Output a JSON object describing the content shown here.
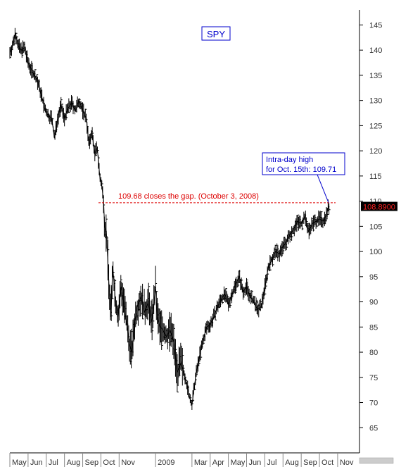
{
  "chart_data": {
    "type": "line",
    "title": "SPY",
    "xlabel": "",
    "ylabel": "",
    "ylim": [
      60,
      148
    ],
    "y_ticks": [
      145,
      140,
      135,
      130,
      125,
      120,
      115,
      110,
      105,
      100,
      95,
      90,
      85,
      80,
      75,
      70,
      65
    ],
    "x_tick_labels": [
      "May",
      "Jun",
      "Jul",
      "Aug",
      "Sep",
      "Oct",
      "Nov",
      "2009",
      "Mar",
      "Apr",
      "May",
      "Jun",
      "Jul",
      "Aug",
      "Sep",
      "Oct",
      "Nov"
    ],
    "x_tick_months": [
      0,
      1,
      2,
      3,
      4,
      5,
      6,
      8,
      10,
      11,
      12,
      13,
      14,
      15,
      16,
      17,
      18
    ],
    "x_range_months": [
      0,
      19.2
    ],
    "last_price": "108.8900",
    "gap_level": 109.68,
    "gap_label": "109.68 closes the gap. (October 3, 2008)",
    "high_label_lines": [
      "Intra-day high",
      "for Oct. 15th: 109.71"
    ],
    "high_point": [
      17.5,
      109.71
    ],
    "colors": {
      "price": "#000000",
      "gap_line": "#dd0000",
      "annotation_border": "#0000cc",
      "annotation_text": "#0000cc",
      "last_price_bg": "#000000",
      "last_price_text": "#ff2222"
    },
    "series": [
      {
        "values": [
          [
            0.0,
            139.5
          ],
          [
            0.2,
            141.5
          ],
          [
            0.3,
            143.5
          ],
          [
            0.45,
            141.0
          ],
          [
            0.6,
            140.0
          ],
          [
            0.8,
            140.5
          ],
          [
            1.0,
            137.5
          ],
          [
            1.2,
            136.0
          ],
          [
            1.5,
            134.0
          ],
          [
            1.7,
            131.5
          ],
          [
            1.9,
            128.5
          ],
          [
            2.1,
            127.0
          ],
          [
            2.3,
            126.5
          ],
          [
            2.45,
            122.5
          ],
          [
            2.6,
            126.0
          ],
          [
            2.8,
            129.0
          ],
          [
            3.0,
            126.5
          ],
          [
            3.2,
            128.5
          ],
          [
            3.4,
            129.5
          ],
          [
            3.6,
            128.0
          ],
          [
            3.8,
            130.0
          ],
          [
            4.0,
            128.0
          ],
          [
            4.2,
            126.5
          ],
          [
            4.35,
            121.0
          ],
          [
            4.5,
            124.0
          ],
          [
            4.65,
            119.5
          ],
          [
            4.8,
            120.5
          ],
          [
            4.95,
            114.5
          ],
          [
            5.05,
            113.0
          ],
          [
            5.15,
            110.0
          ],
          [
            5.2,
            105.0
          ],
          [
            5.3,
            104.0
          ],
          [
            5.45,
            93.0
          ],
          [
            5.55,
            87.0
          ],
          [
            5.65,
            97.0
          ],
          [
            5.8,
            90.0
          ],
          [
            5.95,
            87.0
          ],
          [
            6.1,
            93.0
          ],
          [
            6.25,
            90.0
          ],
          [
            6.4,
            86.0
          ],
          [
            6.55,
            82.0
          ],
          [
            6.7,
            80.0
          ],
          [
            6.85,
            86.0
          ],
          [
            7.0,
            89.0
          ],
          [
            7.2,
            91.0
          ],
          [
            7.4,
            88.0
          ],
          [
            7.6,
            90.0
          ],
          [
            7.8,
            86.0
          ],
          [
            8.0,
            93.0
          ],
          [
            8.1,
            87.0
          ],
          [
            8.25,
            85.0
          ],
          [
            8.4,
            84.5
          ],
          [
            8.6,
            83.0
          ],
          [
            8.8,
            84.5
          ],
          [
            9.0,
            82.0
          ],
          [
            9.2,
            76.0
          ],
          [
            9.4,
            78.0
          ],
          [
            9.6,
            75.5
          ],
          [
            9.8,
            72.0
          ],
          [
            10.0,
            69.5
          ],
          [
            10.2,
            75.0
          ],
          [
            10.4,
            79.0
          ],
          [
            10.6,
            82.0
          ],
          [
            10.8,
            85.0
          ],
          [
            11.0,
            85.5
          ],
          [
            11.2,
            87.0
          ],
          [
            11.4,
            89.0
          ],
          [
            11.6,
            90.5
          ],
          [
            11.8,
            91.5
          ],
          [
            12.0,
            89.5
          ],
          [
            12.2,
            91.5
          ],
          [
            12.4,
            93.5
          ],
          [
            12.6,
            95.0
          ],
          [
            12.8,
            92.0
          ],
          [
            13.0,
            93.0
          ],
          [
            13.2,
            91.0
          ],
          [
            13.4,
            90.0
          ],
          [
            13.6,
            88.5
          ],
          [
            13.8,
            89.0
          ],
          [
            14.0,
            93.0
          ],
          [
            14.2,
            97.0
          ],
          [
            14.4,
            98.5
          ],
          [
            14.6,
            100.0
          ],
          [
            14.8,
            99.5
          ],
          [
            15.0,
            101.0
          ],
          [
            15.2,
            102.0
          ],
          [
            15.4,
            103.5
          ],
          [
            15.6,
            104.5
          ],
          [
            15.8,
            106.0
          ],
          [
            16.0,
            105.5
          ],
          [
            16.2,
            107.0
          ],
          [
            16.4,
            104.0
          ],
          [
            16.6,
            105.5
          ],
          [
            16.8,
            106.0
          ],
          [
            17.0,
            106.5
          ],
          [
            17.2,
            106.0
          ],
          [
            17.4,
            107.5
          ],
          [
            17.5,
            109.0
          ],
          [
            17.55,
            108.9
          ]
        ]
      }
    ]
  }
}
